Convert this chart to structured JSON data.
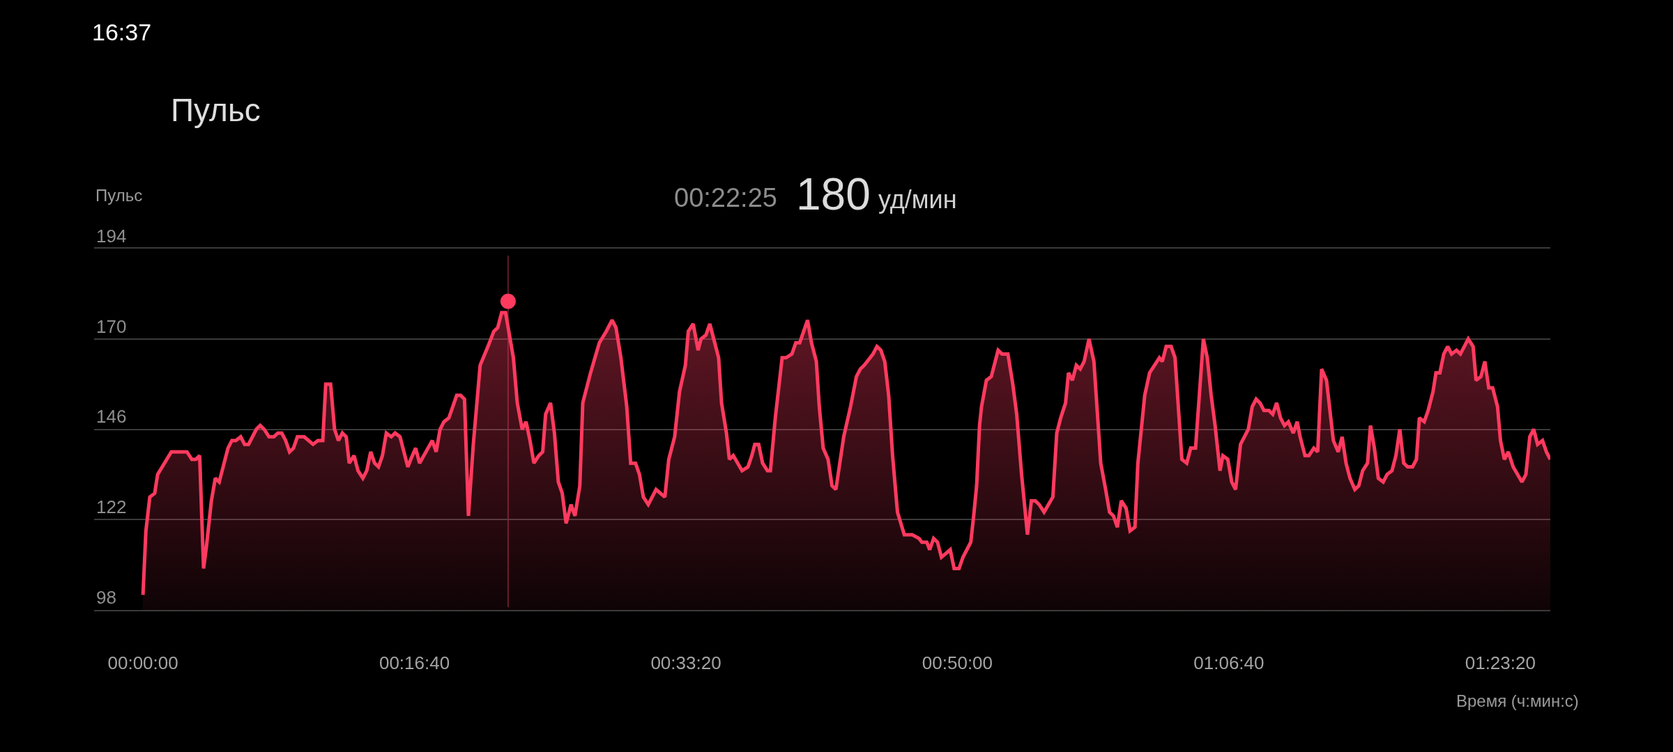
{
  "chart_data": {
    "type": "area",
    "title": "Пульс",
    "ylabel": "Пульс",
    "xlabel": "Время (ч:мин:с)",
    "annotations": [
      "16:37",
      "00:22:25",
      "180",
      "уд/мин"
    ],
    "ref_lines": [
      {
        "axis": "x",
        "value": 0.3736,
        "color": "#5e1b2a"
      }
    ],
    "xlim": [
      -0.05,
      1.44
    ],
    "ylim": [
      98,
      194
    ],
    "xticks": [
      {
        "value": 0,
        "label": "00:00:00"
      },
      {
        "value": 0.27778,
        "label": "00:16:40"
      },
      {
        "value": 0.55556,
        "label": "00:33:20"
      },
      {
        "value": 0.83333,
        "label": "00:50:00"
      },
      {
        "value": 1.11111,
        "label": "01:06:40"
      },
      {
        "value": 1.38889,
        "label": "01:23:20"
      }
    ],
    "yticks": [
      98,
      122,
      146,
      170,
      194
    ],
    "grid": "y",
    "series": [
      {
        "color": "#ff3a5f",
        "x": [
          0.0,
          0.003,
          0.007,
          0.012,
          0.015,
          0.029,
          0.045,
          0.05,
          0.054,
          0.058,
          0.062,
          0.065,
          0.07,
          0.074,
          0.078,
          0.082,
          0.087,
          0.091,
          0.095,
          0.1,
          0.104,
          0.108,
          0.116,
          0.12,
          0.124,
          0.129,
          0.134,
          0.138,
          0.142,
          0.146,
          0.15,
          0.154,
          0.158,
          0.165,
          0.174,
          0.179,
          0.184,
          0.187,
          0.192,
          0.196,
          0.2,
          0.204,
          0.208,
          0.211,
          0.216,
          0.22,
          0.225,
          0.229,
          0.233,
          0.237,
          0.241,
          0.245,
          0.249,
          0.254,
          0.258,
          0.263,
          0.267,
          0.271,
          0.274,
          0.279,
          0.283,
          0.296,
          0.3,
          0.304,
          0.308,
          0.313,
          0.321,
          0.325,
          0.329,
          0.333,
          0.338,
          0.345,
          0.353,
          0.359,
          0.363,
          0.367,
          0.371,
          0.379,
          0.383,
          0.388,
          0.392,
          0.396,
          0.4,
          0.405,
          0.409,
          0.412,
          0.417,
          0.421,
          0.425,
          0.429,
          0.433,
          0.438,
          0.442,
          0.447,
          0.45,
          0.458,
          0.467,
          0.474,
          0.48,
          0.484,
          0.489,
          0.495,
          0.499,
          0.504,
          0.508,
          0.512,
          0.517,
          0.525,
          0.534,
          0.538,
          0.544,
          0.549,
          0.555,
          0.558,
          0.563,
          0.568,
          0.571,
          0.576,
          0.58,
          0.584,
          0.589,
          0.592,
          0.597,
          0.6,
          0.604,
          0.613,
          0.619,
          0.623,
          0.626,
          0.63,
          0.634,
          0.639,
          0.642,
          0.647,
          0.654,
          0.658,
          0.664,
          0.668,
          0.672,
          0.68,
          0.684,
          0.689,
          0.692,
          0.696,
          0.701,
          0.705,
          0.709,
          0.717,
          0.724,
          0.73,
          0.734,
          0.738,
          0.744,
          0.747,
          0.751,
          0.755,
          0.759,
          0.763,
          0.767,
          0.772,
          0.779,
          0.787,
          0.794,
          0.797,
          0.802,
          0.805,
          0.809,
          0.813,
          0.817,
          0.826,
          0.83,
          0.835,
          0.839,
          0.847,
          0.85,
          0.853,
          0.856,
          0.858,
          0.863,
          0.868,
          0.875,
          0.879,
          0.885,
          0.89,
          0.894,
          0.899,
          0.905,
          0.909,
          0.913,
          0.917,
          0.922,
          0.931,
          0.935,
          0.939,
          0.944,
          0.947,
          0.951,
          0.955,
          0.959,
          0.963,
          0.968,
          0.973,
          0.98,
          0.985,
          0.989,
          0.993,
          0.997,
          1.001,
          1.006,
          1.01,
          1.015,
          1.018,
          1.025,
          1.03,
          1.04,
          1.043,
          1.047,
          1.052,
          1.056,
          1.063,
          1.068,
          1.072,
          1.077,
          1.085,
          1.089,
          1.093,
          1.097,
          1.102,
          1.105,
          1.11,
          1.114,
          1.118,
          1.123,
          1.131,
          1.135,
          1.139,
          1.143,
          1.147,
          1.152,
          1.156,
          1.16,
          1.164,
          1.168,
          1.172,
          1.177,
          1.181,
          1.184,
          1.189,
          1.193,
          1.198,
          1.202,
          1.206,
          1.211,
          1.218,
          1.223,
          1.227,
          1.231,
          1.235,
          1.24,
          1.244,
          1.248,
          1.253,
          1.256,
          1.26,
          1.264,
          1.269,
          1.273,
          1.278,
          1.282,
          1.286,
          1.29,
          1.294,
          1.299,
          1.303,
          1.306,
          1.311,
          1.315,
          1.32,
          1.323,
          1.327,
          1.331,
          1.335,
          1.339,
          1.344,
          1.348,
          1.352,
          1.356,
          1.361,
          1.364,
          1.369,
          1.373,
          1.377,
          1.381,
          1.386,
          1.389,
          1.393,
          1.397,
          1.402,
          1.411,
          1.415,
          1.419,
          1.423,
          1.427,
          1.432,
          1.436,
          1.44
        ],
        "values": [
          102,
          119,
          128,
          129,
          134,
          140,
          140,
          138,
          138,
          139,
          109,
          115,
          127,
          133,
          132,
          136,
          141,
          143,
          143,
          144,
          142,
          142,
          146,
          147,
          146,
          144,
          144,
          145,
          145,
          143,
          140,
          141,
          144,
          144,
          142,
          143,
          143,
          158,
          158,
          146,
          143,
          145,
          144,
          137,
          139,
          135,
          133,
          135,
          140,
          137,
          136,
          139,
          145,
          144,
          145,
          144,
          140,
          136,
          138,
          141,
          137,
          143,
          140,
          146,
          148,
          149,
          155,
          155,
          154,
          123,
          142,
          163,
          168,
          172,
          173,
          177,
          177,
          165,
          153,
          146,
          148,
          143,
          137,
          139,
          140,
          150,
          153,
          145,
          132,
          129,
          121,
          126,
          123,
          131,
          153,
          161,
          169,
          172,
          175,
          173,
          165,
          152,
          137,
          137,
          134,
          128,
          126,
          130,
          128,
          138,
          144,
          156,
          163,
          172,
          174,
          167,
          170,
          171,
          174,
          170,
          165,
          153,
          145,
          138,
          139,
          135,
          136,
          139,
          142,
          142,
          137,
          135,
          135,
          149,
          165,
          165,
          166,
          169,
          169,
          175,
          169,
          164,
          152,
          141,
          138,
          131,
          130,
          144,
          152,
          160,
          162,
          163,
          165,
          166,
          168,
          167,
          164,
          155,
          139,
          124,
          118,
          118,
          117,
          116,
          116,
          114,
          117,
          116,
          112,
          114,
          109,
          109,
          112,
          116,
          123,
          131,
          147,
          152,
          159,
          160,
          167,
          166,
          166,
          158,
          150,
          134,
          118,
          127,
          127,
          126,
          124,
          128,
          145,
          149,
          153,
          161,
          159,
          163,
          162,
          164,
          170,
          164,
          137,
          130,
          124,
          123,
          120,
          127,
          125,
          119,
          120,
          137,
          155,
          161,
          165,
          164,
          168,
          168,
          165,
          138,
          137,
          141,
          141,
          170,
          165,
          155,
          147,
          135,
          139,
          138,
          132,
          130,
          142,
          146,
          152,
          154,
          153,
          151,
          151,
          150,
          153,
          149,
          147,
          148,
          145,
          148,
          144,
          139,
          139,
          141,
          140,
          162,
          159,
          143,
          140,
          144,
          137,
          133,
          130,
          131,
          135,
          137,
          147,
          141,
          133,
          132,
          134,
          135,
          139,
          146,
          137,
          136,
          136,
          138,
          149,
          148,
          151,
          156,
          161,
          161,
          166,
          168,
          166,
          167,
          166,
          168,
          170,
          168,
          159,
          160,
          164,
          157,
          157,
          152,
          143,
          138,
          140,
          136,
          132,
          134,
          144,
          146,
          142,
          143,
          140,
          138
        ]
      },
      {
        "type": "scatter",
        "marker": "circle",
        "color": "#ff3a5f",
        "x": [
          0.3736
        ],
        "values": [
          180
        ]
      }
    ]
  }
}
